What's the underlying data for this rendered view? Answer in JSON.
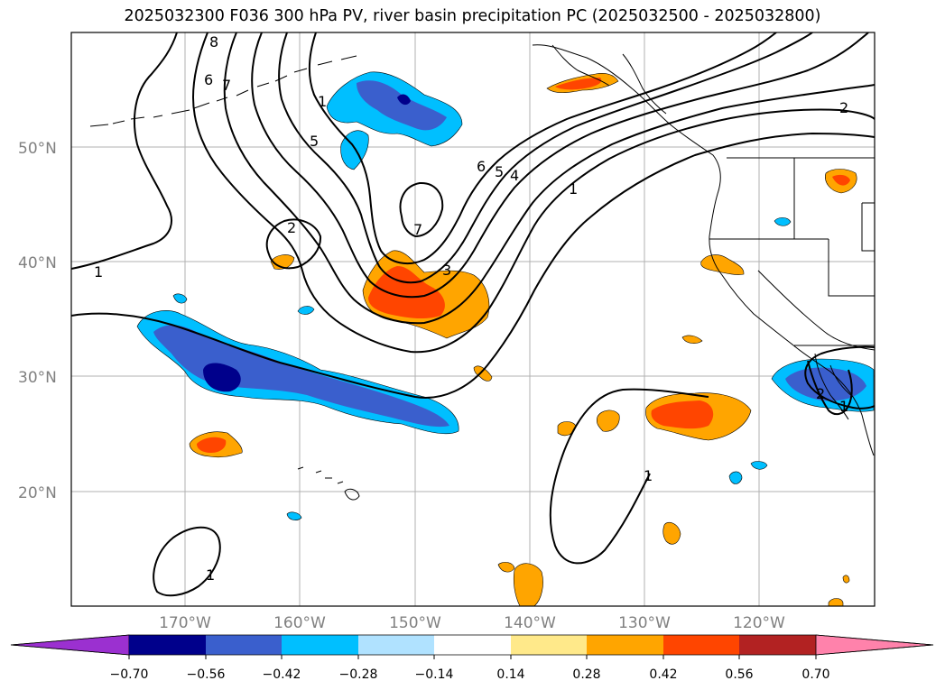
{
  "title": "2025032300 F036 300 hPa PV, river basin precipitation PC (2025032500 - 2025032800)",
  "map": {
    "lat_labels": [
      "50°N",
      "40°N",
      "30°N",
      "20°N"
    ],
    "lon_labels": [
      "170°W",
      "160°W",
      "150°W",
      "140°W",
      "130°W",
      "120°W"
    ],
    "pv_contour_labels": [
      "1",
      "1",
      "2",
      "5",
      "6",
      "7",
      "8",
      "2",
      "7",
      "3",
      "6",
      "5",
      "4",
      "1",
      "2",
      "1",
      "1",
      "1"
    ]
  },
  "colorbar": {
    "ticks": [
      "−0.70",
      "−0.56",
      "−0.42",
      "−0.28",
      "−0.14",
      "0.14",
      "0.28",
      "0.42",
      "0.56",
      "0.70"
    ],
    "colors": [
      "#9b30d0",
      "#00008b",
      "#3a5fcd",
      "#00bfff",
      "#b0e2ff",
      "#ffffff",
      "#ffe98a",
      "#ffa500",
      "#ff4500",
      "#b22222",
      "#ff82ab"
    ]
  }
}
